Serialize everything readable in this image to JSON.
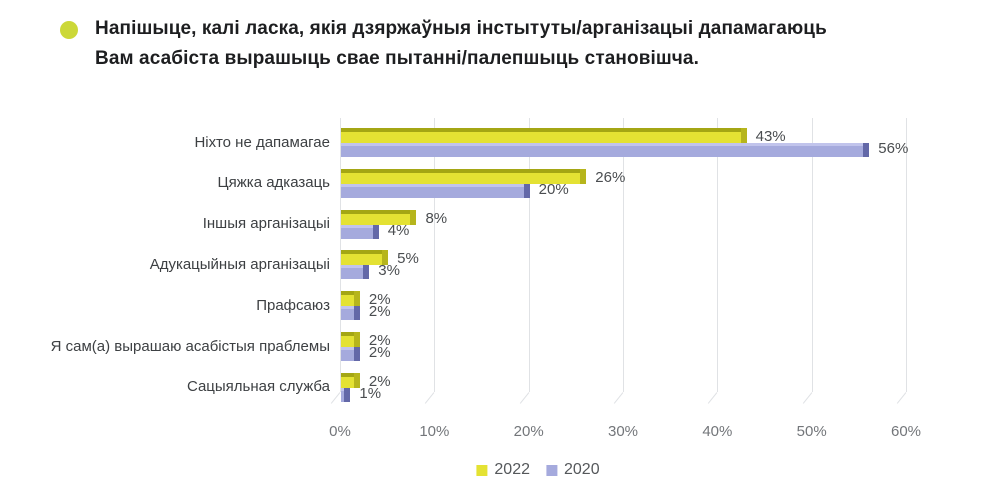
{
  "header": {
    "bullet_color": "#ccd838",
    "title_lines": [
      "Напішыце, калі ласка, якія дзяржаўныя інстытуты/арганізацыі дапамагаюць",
      "Вам асабіста вырашыць свае пытанні/палепшыць становішча."
    ]
  },
  "chart_data": {
    "type": "bar",
    "orientation": "horizontal",
    "style": "3d",
    "categories": [
      "Ніхто не дапамагае",
      "Цяжка адказаць",
      "Іншыя арганізацыі",
      "Адукацыйныя арганізацыі",
      "Прафсаюз",
      "Я сам(а) вырашаю асабістыя праблемы",
      "Сацыяльная служба"
    ],
    "series": [
      {
        "name": "2022",
        "color": "#e4e233",
        "top_color": "#a4a614",
        "cap_color": "#b6b51c",
        "values": [
          43,
          26,
          8,
          5,
          2,
          2,
          2
        ]
      },
      {
        "name": "2020",
        "color": "#a5aadd",
        "top_color": "#c1c4ec",
        "cap_color": "#6368a8",
        "values": [
          56,
          20,
          4,
          3,
          2,
          2,
          1
        ]
      }
    ],
    "value_suffix": "%",
    "xlim": [
      0,
      60
    ],
    "xtick_labels": [
      "0%",
      "10%",
      "20%",
      "30%",
      "40%",
      "50%",
      "60%"
    ],
    "grid": true,
    "legend_position": "bottom-center",
    "gridline_color": "#e0e2e5"
  }
}
